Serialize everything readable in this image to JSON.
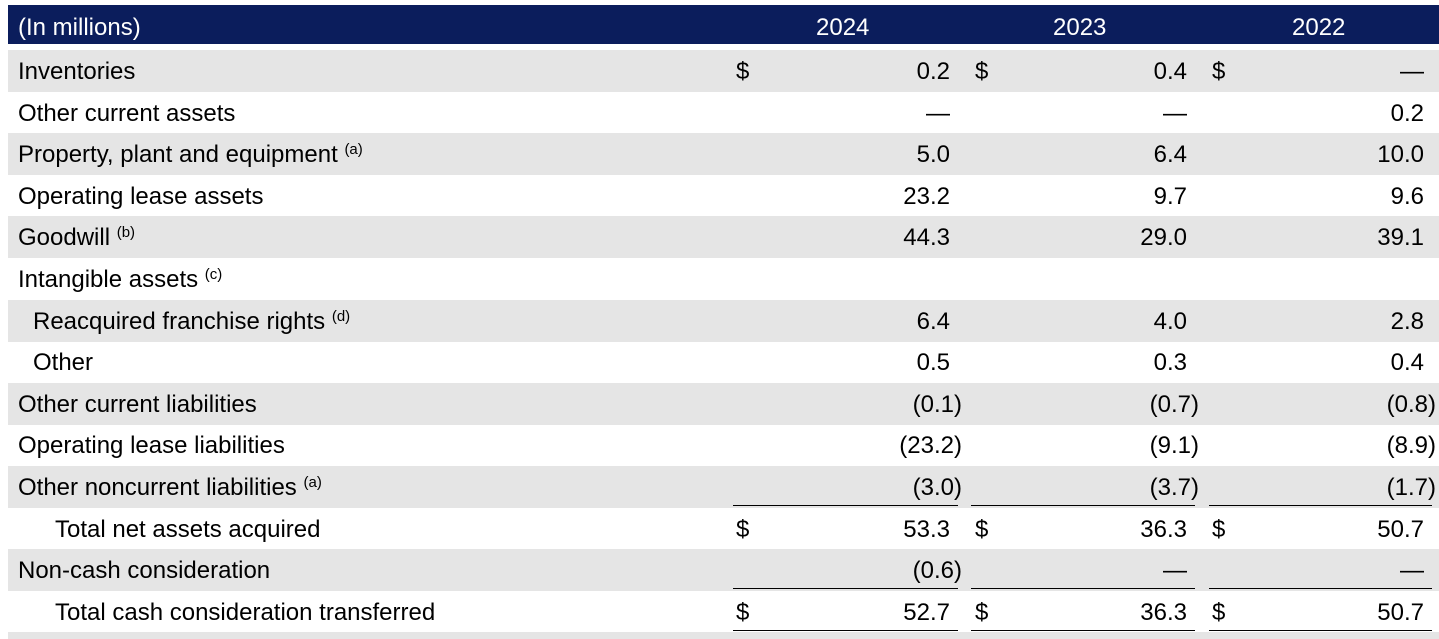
{
  "header": {
    "unit": "(In millions)",
    "years": [
      "2024",
      "2023",
      "2022"
    ]
  },
  "currency_symbol": "$",
  "rows": [
    {
      "label": "Inventories",
      "values": [
        "0.2",
        "0.4",
        "—"
      ],
      "currency": true
    },
    {
      "label": "Other current assets",
      "values": [
        "—",
        "—",
        "0.2"
      ]
    },
    {
      "label": "Property, plant and equipment",
      "note": "(a)",
      "values": [
        "5.0",
        "6.4",
        "10.0"
      ]
    },
    {
      "label": "Operating lease assets",
      "values": [
        "23.2",
        "9.7",
        "9.6"
      ]
    },
    {
      "label": "Goodwill",
      "note": "(b)",
      "values": [
        "44.3",
        "29.0",
        "39.1"
      ]
    },
    {
      "label": "Intangible assets",
      "note": "(c)",
      "values": [
        "",
        "",
        ""
      ]
    },
    {
      "label": "Reacquired franchise rights",
      "note": "(d)",
      "values": [
        "6.4",
        "4.0",
        "2.8"
      ],
      "indent": 1
    },
    {
      "label": "Other",
      "values": [
        "0.5",
        "0.3",
        "0.4"
      ],
      "indent": 1
    },
    {
      "label": "Other current liabilities",
      "values": [
        "(0.1)",
        "(0.7)",
        "(0.8)"
      ]
    },
    {
      "label": "Operating lease liabilities",
      "values": [
        "(23.2)",
        "(9.1)",
        "(8.9)"
      ]
    },
    {
      "label": "Other noncurrent liabilities",
      "note": "(a)",
      "values": [
        "(3.0)",
        "(3.7)",
        "(1.7)"
      ],
      "rule_below": "single"
    },
    {
      "label": "Total net assets acquired",
      "values": [
        "53.3",
        "36.3",
        "50.7"
      ],
      "currency": true,
      "indent": 2
    },
    {
      "label": "Non-cash consideration",
      "values": [
        "(0.6)",
        "—",
        "—"
      ],
      "rule_below": "single"
    },
    {
      "label": "Total cash consideration transferred",
      "values": [
        "52.7",
        "36.3",
        "50.7"
      ],
      "currency": true,
      "indent": 2,
      "rule_below": "double"
    }
  ]
}
